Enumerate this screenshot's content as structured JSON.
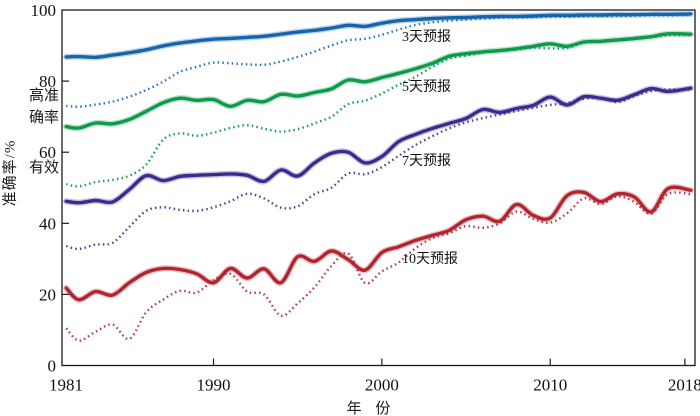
{
  "page": {
    "background": "#ffffff",
    "frame_color": "#1a1a1a"
  },
  "axes": {
    "y_title": "准确率/%",
    "x_title": "年 份",
    "threshold_label_high": "高准确率",
    "threshold_label_valid": "有效"
  },
  "chart_data": {
    "type": "line",
    "title": "",
    "xlabel": "年 份",
    "ylabel": "准确率/%",
    "xlim": [
      1981,
      2018.6
    ],
    "ylim": [
      0,
      100
    ],
    "x_ticks": [
      1981,
      1990,
      2000,
      2010,
      2018
    ],
    "y_ticks": [
      0,
      20,
      40,
      60,
      80,
      100
    ],
    "grid": false,
    "legend_position": "inline-labels",
    "x": [
      1981,
      1982,
      1983,
      1984,
      1985,
      1986,
      1987,
      1988,
      1989,
      1990,
      1991,
      1992,
      1993,
      1994,
      1995,
      1996,
      1997,
      1998,
      1999,
      2000,
      2001,
      2002,
      2003,
      2004,
      2005,
      2006,
      2007,
      2008,
      2009,
      2010,
      2011,
      2012,
      2013,
      2014,
      2015,
      2016,
      2017,
      2018
    ],
    "series": [
      {
        "id": "day3-solid",
        "label": "3天预报",
        "line_style": "solid",
        "color": "#1565ae",
        "values": [
          86.8,
          86.9,
          86.7,
          87.3,
          88.0,
          88.8,
          89.9,
          90.7,
          91.3,
          91.8,
          92.0,
          92.3,
          92.6,
          93.2,
          93.8,
          94.3,
          94.9,
          95.7,
          95.4,
          96.3,
          97.0,
          97.3,
          97.6,
          97.8,
          97.9,
          98.1,
          98.2,
          98.2,
          98.3,
          98.5,
          98.5,
          98.6,
          98.6,
          98.7,
          98.7,
          98.8,
          98.8,
          98.9
        ]
      },
      {
        "id": "day3-dotted",
        "label": "3天预报",
        "line_style": "dotted",
        "color": "#2273c2",
        "values": [
          73.0,
          72.8,
          73.4,
          74.2,
          75.6,
          77.5,
          79.8,
          82.6,
          84.0,
          85.2,
          85.0,
          84.7,
          84.6,
          85.5,
          86.8,
          88.3,
          90.0,
          91.5,
          91.9,
          93.0,
          94.5,
          95.8,
          96.5,
          97.0,
          97.3,
          97.6,
          97.8,
          97.9,
          98.0,
          98.1,
          98.1,
          98.2,
          98.3,
          98.3,
          98.4,
          98.5,
          98.5,
          98.6
        ]
      },
      {
        "id": "day5-solid",
        "label": "5天预报",
        "line_style": "solid",
        "color": "#0d9a4c",
        "values": [
          67.2,
          66.8,
          68.2,
          68.0,
          69.2,
          71.5,
          73.9,
          75.2,
          74.6,
          74.8,
          72.9,
          74.6,
          74.2,
          76.3,
          75.8,
          76.8,
          77.8,
          80.3,
          79.8,
          81.0,
          82.2,
          83.5,
          85.0,
          87.0,
          87.7,
          88.2,
          88.6,
          89.1,
          89.8,
          90.5,
          89.8,
          91.0,
          91.2,
          91.6,
          92.0,
          92.5,
          93.3,
          93.2
        ]
      },
      {
        "id": "day5-dotted",
        "label": "5天预报",
        "line_style": "dotted",
        "color": "#10a053",
        "values": [
          51.0,
          50.4,
          51.6,
          52.2,
          53.4,
          56.5,
          63.5,
          65.3,
          64.6,
          65.5,
          66.8,
          67.6,
          66.6,
          65.8,
          66.5,
          68.1,
          70.0,
          73.5,
          74.5,
          76.5,
          79.0,
          81.2,
          84.0,
          86.3,
          87.2,
          88.0,
          88.4,
          88.9,
          89.4,
          89.2,
          89.3,
          90.8,
          91.0,
          91.4,
          91.8,
          92.3,
          92.9,
          92.9
        ]
      },
      {
        "id": "day7-solid",
        "label": "7天预报",
        "line_style": "solid",
        "color": "#3a2b91",
        "values": [
          46.2,
          45.8,
          46.4,
          46.0,
          49.5,
          53.4,
          52.0,
          53.2,
          53.5,
          53.7,
          53.9,
          53.5,
          51.8,
          55.0,
          53.3,
          57.0,
          59.7,
          60.0,
          57.0,
          58.8,
          63.0,
          65.0,
          66.7,
          68.1,
          69.5,
          72.0,
          71.2,
          72.3,
          73.2,
          75.5,
          73.3,
          75.6,
          75.2,
          74.6,
          76.2,
          77.9,
          77.1,
          78.0
        ]
      },
      {
        "id": "day7-dotted",
        "label": "7天预报",
        "line_style": "dotted",
        "color": "#4e3da2",
        "values": [
          33.6,
          32.8,
          34.0,
          34.5,
          39.0,
          43.5,
          44.5,
          43.8,
          43.5,
          44.5,
          46.2,
          48.3,
          47.0,
          44.4,
          44.8,
          48.2,
          50.0,
          54.0,
          53.8,
          55.8,
          59.0,
          62.0,
          64.5,
          66.7,
          68.4,
          69.6,
          70.6,
          71.6,
          72.5,
          73.3,
          73.8,
          75.0,
          75.4,
          74.1,
          75.8,
          77.2,
          77.6,
          77.6
        ]
      },
      {
        "id": "day10-solid",
        "label": "10天预报",
        "line_style": "solid",
        "color": "#b2242e",
        "values": [
          21.8,
          18.5,
          20.8,
          19.8,
          23.3,
          26.2,
          27.3,
          27.0,
          25.8,
          23.3,
          27.3,
          24.6,
          27.2,
          23.3,
          30.6,
          29.3,
          32.2,
          29.8,
          26.8,
          31.8,
          33.4,
          35.2,
          36.6,
          38.0,
          41.0,
          42.0,
          40.6,
          45.3,
          42.2,
          41.5,
          47.8,
          48.7,
          46.1,
          48.3,
          47.4,
          43.2,
          49.8,
          49.3
        ]
      },
      {
        "id": "day10-dotted",
        "label": "10天预报",
        "line_style": "dotted",
        "color": "#b93641",
        "values": [
          10.5,
          7.0,
          9.5,
          11.5,
          7.5,
          15.0,
          18.5,
          21.0,
          20.5,
          24.0,
          25.8,
          20.8,
          20.0,
          14.0,
          17.5,
          22.0,
          28.0,
          31.5,
          23.2,
          26.5,
          29.0,
          33.0,
          35.8,
          37.2,
          39.2,
          38.7,
          40.0,
          43.3,
          41.2,
          40.2,
          42.8,
          47.0,
          45.4,
          47.6,
          46.0,
          42.7,
          48.3,
          48.2
        ]
      }
    ],
    "series_labels": [
      {
        "text": "3天预报",
        "x": 2001.2,
        "y": 92.1
      },
      {
        "text": "5天预报",
        "x": 2001.2,
        "y": 78.0
      },
      {
        "text": "7天预报",
        "x": 2001.2,
        "y": 57.3
      },
      {
        "text": "10天预报",
        "x": 2001.2,
        "y": 29.8
      }
    ],
    "annotations": [
      "高准确率",
      "有效"
    ]
  }
}
